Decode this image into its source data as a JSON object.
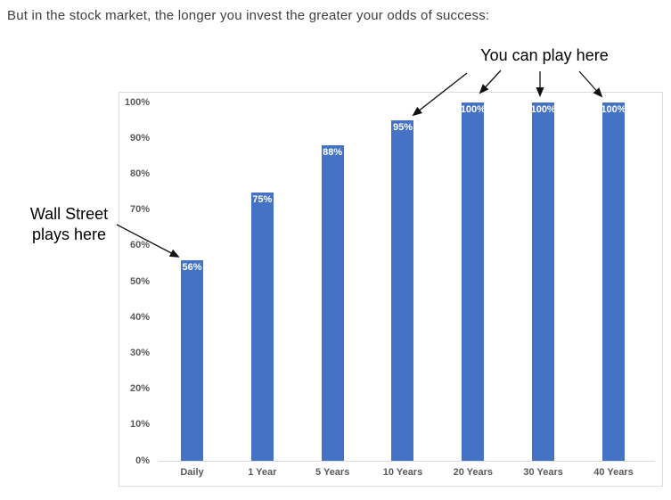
{
  "title": "But in the stock market, the longer you invest the greater your odds of success:",
  "chart_data": {
    "type": "bar",
    "categories": [
      "Daily",
      "1 Year",
      "5 Years",
      "10 Years",
      "20 Years",
      "30 Years",
      "40 Years"
    ],
    "values": [
      56,
      75,
      88,
      95,
      100,
      100,
      100
    ],
    "bar_labels": [
      "56%",
      "75%",
      "88%",
      "95%",
      "100%",
      "100%",
      "100%"
    ],
    "title": "",
    "xlabel": "",
    "ylabel": "",
    "ylim": [
      0,
      100
    ],
    "y_ticks": [
      "0%",
      "10%",
      "20%",
      "30%",
      "40%",
      "50%",
      "60%",
      "70%",
      "80%",
      "90%",
      "100%"
    ],
    "grid": false,
    "legend": false,
    "bar_label_position": "inside-top"
  },
  "annotations": {
    "wall_street": {
      "line1": "Wall Street",
      "line2": "plays here",
      "target": "Daily"
    },
    "you_can_play": {
      "text": "You can play here",
      "targets": [
        "10 Years",
        "20 Years",
        "30 Years",
        "40 Years"
      ]
    }
  },
  "colors": {
    "bar": "#4472c4",
    "bar_label": "#ffffff",
    "axis_text": "#595959",
    "axis_line": "#d9d9d9",
    "chart_border": "#dadce0",
    "title_text": "#3c4043",
    "annotation_text": "#000000"
  }
}
